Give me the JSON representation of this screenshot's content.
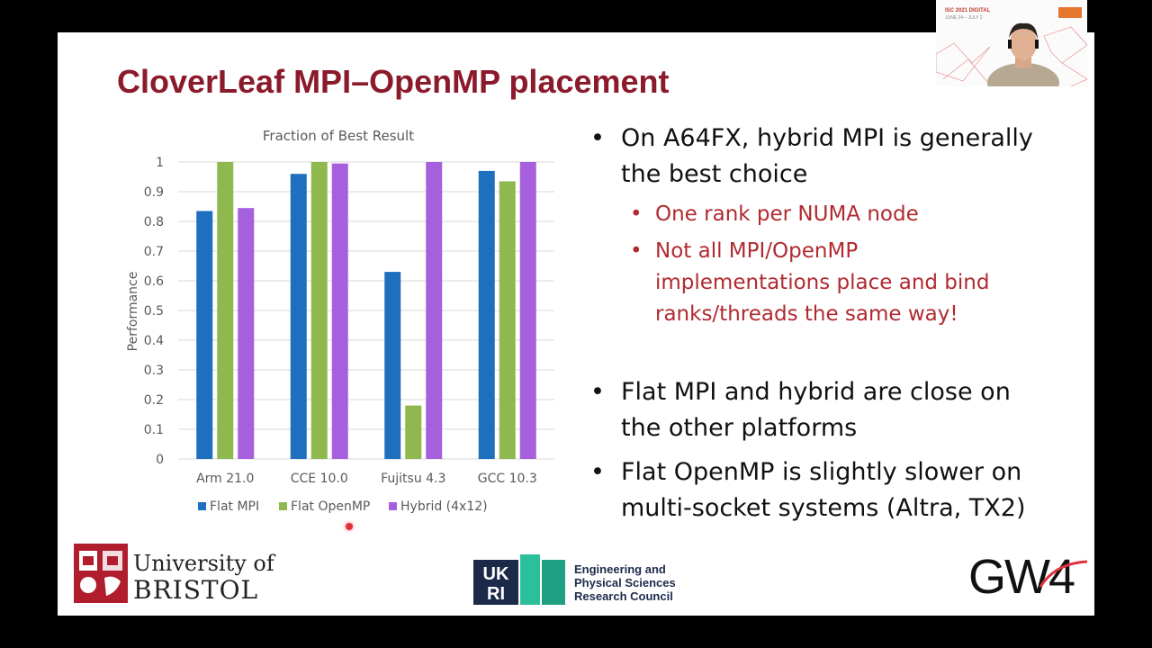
{
  "slide": {
    "title": "CloverLeaf MPI–OpenMP placement"
  },
  "chart_data": {
    "type": "bar",
    "title": "Fraction of Best Result",
    "ylabel": "Performance",
    "xlabel": "",
    "categories": [
      "Arm 21.0",
      "CCE 10.0",
      "Fujitsu 4.3",
      "GCC 10.3"
    ],
    "series": [
      {
        "name": "Flat MPI",
        "color": "#1f6fbf",
        "values": [
          0.835,
          0.96,
          0.63,
          0.97
        ]
      },
      {
        "name": "Flat OpenMP",
        "color": "#8fb84f",
        "values": [
          1.0,
          1.0,
          0.18,
          0.935
        ]
      },
      {
        "name": "Hybrid (4x12)",
        "color": "#a660de",
        "values": [
          0.845,
          0.995,
          1.0,
          1.0
        ]
      }
    ],
    "ylim": [
      0,
      1
    ],
    "yticks": [
      "0",
      "0.1",
      "0.2",
      "0.3",
      "0.4",
      "0.5",
      "0.6",
      "0.7",
      "0.8",
      "0.9",
      "1"
    ],
    "grid": true,
    "legend": "bottom"
  },
  "bullets": {
    "b1": {
      "line1": "On A64FX, hybrid MPI is generally",
      "line2": "the best choice"
    },
    "b1_sub1": "One rank per NUMA node",
    "b1_sub2": {
      "line1": "Not all MPI/OpenMP",
      "line2": "implementations place and bind",
      "line3": "ranks/threads the same way!"
    },
    "b2": {
      "line1": "Flat MPI and hybrid are close on",
      "line2": "the other platforms"
    },
    "b3": {
      "line1": "Flat OpenMP is slightly slower on",
      "line2": "multi-socket systems (Altra, TX2)"
    },
    "bullet_char": "•"
  },
  "logos": {
    "bristol": {
      "line1": "University of",
      "line2": "BRISTOL"
    },
    "ukri": {
      "line1": "UK",
      "line2": "RI"
    },
    "epsrc": {
      "line1": "Engineering and",
      "line2": "Physical Sciences",
      "line3": "Research Council"
    },
    "gw4": "GW4"
  },
  "webcam": {
    "event_line1": "ISC 2021 DIGITAL",
    "event_line2": "JUNE 24 – JULY 2"
  },
  "colors": {
    "title": "#8b1a2b",
    "sub_bullet": "#b02a30",
    "epsrc_teal": "#2cbf9b",
    "ukri_navy": "#1c2a4a"
  }
}
